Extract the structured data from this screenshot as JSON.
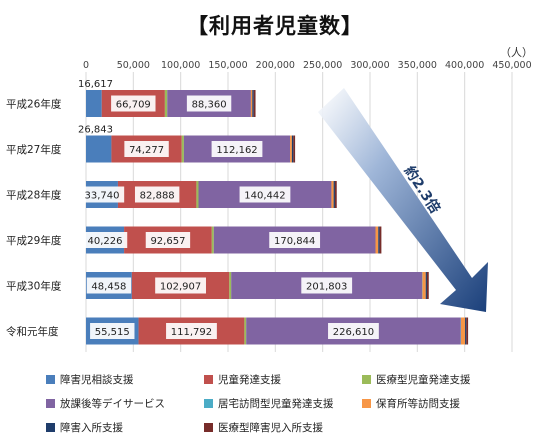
{
  "chart_data": {
    "type": "bar",
    "orientation": "horizontal",
    "stacked": true,
    "title": "【利用者児童数】",
    "unit": "（人）",
    "xlim": [
      0,
      450000
    ],
    "x_ticks": [
      "0",
      "50,000",
      "100,000",
      "150,000",
      "200,000",
      "250,000",
      "300,000",
      "350,000",
      "400,000",
      "450,000"
    ],
    "grid": true,
    "legend_position": "bottom",
    "categories": [
      "平成26年度",
      "平成27年度",
      "平成28年度",
      "平成29年度",
      "平成30年度",
      "令和元年度"
    ],
    "series": [
      {
        "name": "障害児相談支援",
        "color": "#4a7ebb",
        "values": [
          16617,
          26843,
          33740,
          40226,
          48458,
          55515
        ],
        "labels": [
          "16,617",
          "26,843",
          "33,740",
          "40,226",
          "48,458",
          "55,515"
        ]
      },
      {
        "name": "児童発達支援",
        "color": "#c0504d",
        "values": [
          66709,
          74277,
          82888,
          92657,
          102907,
          111792
        ],
        "labels": [
          "66,709",
          "74,277",
          "82,888",
          "92,657",
          "102,907",
          "111,792"
        ]
      },
      {
        "name": "医療型児童発達支援",
        "color": "#9bbb59",
        "values": [
          2500,
          2300,
          2200,
          2100,
          2000,
          1900
        ]
      },
      {
        "name": "放課後等デイサービス",
        "color": "#8064a2",
        "values": [
          88360,
          112162,
          140442,
          170844,
          201803,
          226610
        ],
        "labels": [
          "88,360",
          "112,162",
          "140,442",
          "170,844",
          "201,803",
          "226,610"
        ]
      },
      {
        "name": "居宅訪問型児童発達支援",
        "color": "#4bacc6",
        "values": [
          0,
          0,
          0,
          0,
          200,
          300
        ]
      },
      {
        "name": "保育所等訪問支援",
        "color": "#f79646",
        "values": [
          1500,
          1900,
          2300,
          2900,
          3500,
          4300
        ]
      },
      {
        "name": "障害入所支援",
        "color": "#1f3d6b",
        "values": [
          1500,
          1500,
          1400,
          1400,
          1300,
          1300
        ]
      },
      {
        "name": "医療型障害児入所支援",
        "color": "#772c2a",
        "values": [
          1900,
          1900,
          1900,
          1900,
          1900,
          1900
        ]
      }
    ],
    "annotation": "約2.3倍"
  }
}
